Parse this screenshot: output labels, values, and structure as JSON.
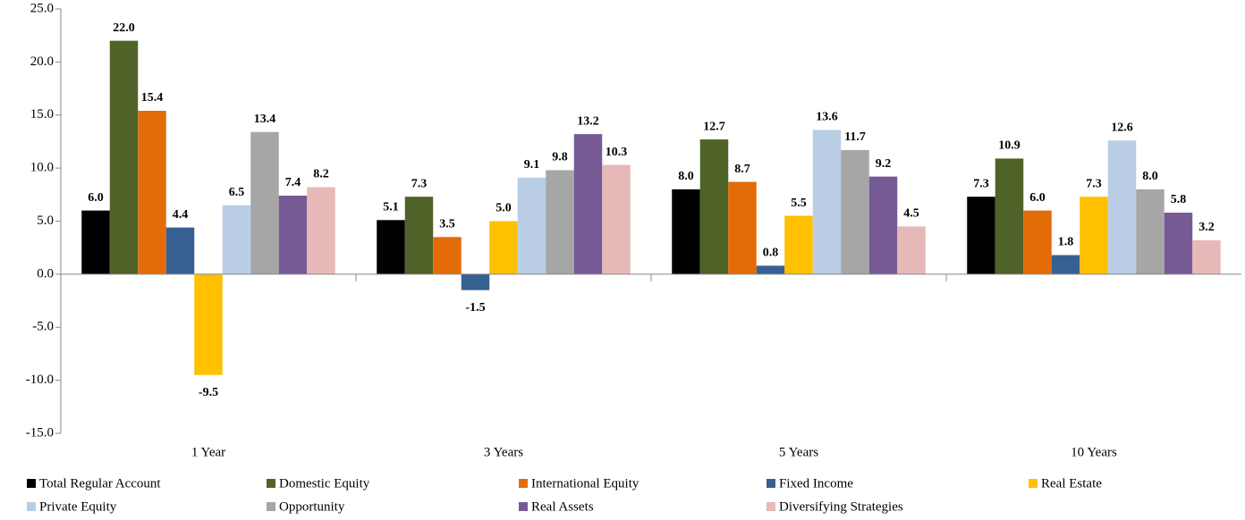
{
  "chart_data": {
    "type": "bar",
    "categories": [
      "1 Year",
      "3 Years",
      "5 Years",
      "10 Years"
    ],
    "series": [
      {
        "name": "Total Regular Account",
        "color": "#000000",
        "values": [
          6.0,
          5.1,
          8.0,
          7.3
        ],
        "value_labels": [
          "6.0",
          "5.1",
          "8.0",
          "7.3"
        ]
      },
      {
        "name": "Domestic Equity",
        "color": "#4f6228",
        "values": [
          22.0,
          7.3,
          12.7,
          10.9
        ],
        "value_labels": [
          "22.0",
          "7.3",
          "12.7",
          "10.9"
        ]
      },
      {
        "name": "International Equity",
        "color": "#e36c09",
        "values": [
          15.4,
          3.5,
          8.7,
          6.0
        ],
        "value_labels": [
          "15.4",
          "3.5",
          "8.7",
          "6.0"
        ]
      },
      {
        "name": "Fixed Income",
        "color": "#376092",
        "values": [
          4.4,
          -1.5,
          0.8,
          1.8
        ],
        "value_labels": [
          "4.4",
          "-1.5",
          "0.8",
          "1.8"
        ]
      },
      {
        "name": "Real Estate",
        "color": "#ffc000",
        "values": [
          -9.5,
          5.0,
          5.5,
          7.3
        ],
        "value_labels": [
          "-9.5",
          "5.0",
          "5.5",
          "7.3"
        ]
      },
      {
        "name": "Private Equity",
        "color": "#b9cde5",
        "values": [
          6.5,
          9.1,
          13.6,
          12.6
        ],
        "value_labels": [
          "6.5",
          "9.1",
          "13.6",
          "12.6"
        ]
      },
      {
        "name": "Opportunity",
        "color": "#a6a6a6",
        "values": [
          13.4,
          9.8,
          11.7,
          8.0
        ],
        "value_labels": [
          "13.4",
          "9.8",
          "11.7",
          "8.0"
        ]
      },
      {
        "name": "Real Assets",
        "color": "#765a96",
        "values": [
          7.4,
          13.2,
          9.2,
          5.8
        ],
        "value_labels": [
          "7.4",
          "13.2",
          "9.2",
          "5.8"
        ]
      },
      {
        "name": "Diversifying Strategies",
        "color": "#e6b9b8",
        "values": [
          8.2,
          10.3,
          4.5,
          3.2
        ],
        "value_labels": [
          "8.2",
          "10.3",
          "4.5",
          "3.2"
        ]
      }
    ],
    "ylim": [
      -15,
      25
    ],
    "yticks": [
      {
        "value": -15,
        "label": "-15.0"
      },
      {
        "value": -10,
        "label": "-10.0"
      },
      {
        "value": -5,
        "label": "-5.0"
      },
      {
        "value": 0,
        "label": "0.0"
      },
      {
        "value": 5,
        "label": "5.0"
      },
      {
        "value": 10,
        "label": "10.0"
      },
      {
        "value": 15,
        "label": "15.0"
      },
      {
        "value": 20,
        "label": "20.0"
      },
      {
        "value": 25,
        "label": "25.0"
      }
    ],
    "grid": false,
    "legend": "bottom"
  }
}
